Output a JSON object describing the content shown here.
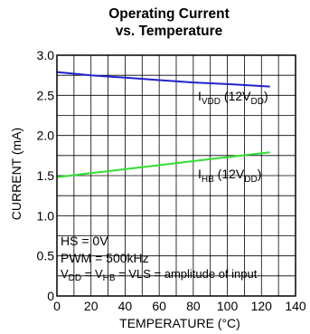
{
  "chart_data": {
    "type": "line",
    "title_line1": "Operating Current",
    "title_line2": "vs. Temperature",
    "xlabel": "TEMPERATURE (°C)",
    "ylabel": "CURRENT (mA)",
    "xlim": [
      0,
      140
    ],
    "ylim": [
      0,
      3.0
    ],
    "x_ticks": [
      0,
      20,
      40,
      60,
      80,
      100,
      120,
      140
    ],
    "y_ticks": [
      0,
      0.5,
      1.0,
      1.5,
      2.0,
      2.5,
      3.0
    ],
    "x_tick_labels": [
      "0",
      "20",
      "40",
      "60",
      "80",
      "100",
      "120",
      "140"
    ],
    "y_tick_labels": [
      "0",
      "0.5",
      "1.0",
      "1.5",
      "2.0",
      "2.5",
      "3.0"
    ],
    "grid": true,
    "series": [
      {
        "label_main": "I",
        "label_sub": "VDD",
        "label_tail": " (12V",
        "label_sub2": "DD",
        "label_end": ")",
        "color": "#2222cc",
        "x": [
          0,
          20,
          40,
          60,
          80,
          100,
          125
        ],
        "y": [
          2.79,
          2.75,
          2.72,
          2.69,
          2.66,
          2.64,
          2.61
        ]
      },
      {
        "label_main": "I",
        "label_sub": "HB",
        "label_tail": " (12V",
        "label_sub2": "DD",
        "label_end": ")",
        "color": "#33dd33",
        "x": [
          0,
          20,
          40,
          60,
          80,
          100,
          125
        ],
        "y": [
          1.48,
          1.53,
          1.58,
          1.63,
          1.68,
          1.73,
          1.79
        ]
      }
    ],
    "annotations": {
      "line1": "HS = 0V",
      "line2": "PWM = 500kHz",
      "line3_a": "V",
      "line3_a_sub": "DD",
      "line3_b": " = V",
      "line3_b_sub": "HB",
      "line3_c": " = VLS = amplitude of input"
    }
  }
}
